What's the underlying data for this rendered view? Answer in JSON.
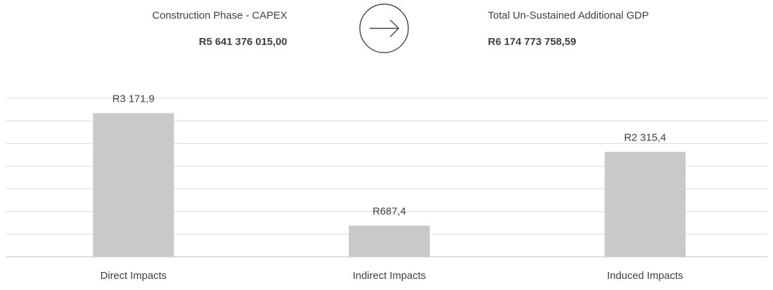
{
  "header": {
    "left_label": "Construction Phase - CAPEX",
    "left_value": "R5 641 376 015,00",
    "right_label": "Total Un-Sustained Additional GDP",
    "right_value": "R6 174 773 758,59"
  },
  "chart_data": {
    "type": "bar",
    "categories": [
      "Direct Impacts",
      "Indirect Impacts",
      "Induced Impacts"
    ],
    "values": [
      3171.9,
      687.4,
      2315.4
    ],
    "value_labels": [
      "R3 171,9",
      "R687,4",
      "R2 315,4"
    ],
    "color": "#c9c9c9",
    "ylim": [
      0,
      3500
    ],
    "yticks": [
      0,
      500,
      1000,
      1500,
      2000,
      2500,
      3000,
      3500
    ],
    "grid": true
  }
}
